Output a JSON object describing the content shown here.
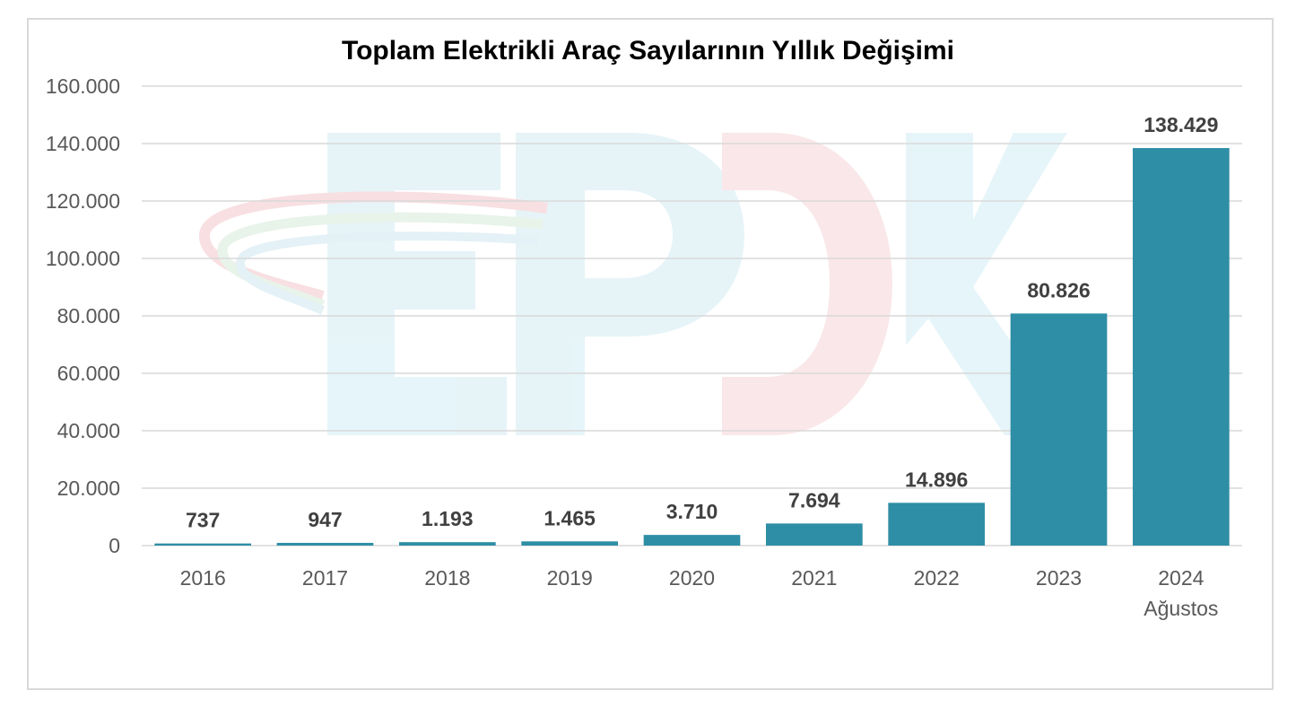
{
  "chart_data": {
    "type": "bar",
    "title": "Toplam Elektrikli Araç Sayılarının Yıllık Değişimi",
    "categories": [
      [
        "2016"
      ],
      [
        "2017"
      ],
      [
        "2018"
      ],
      [
        "2019"
      ],
      [
        "2020"
      ],
      [
        "2021"
      ],
      [
        "2022"
      ],
      [
        "2023"
      ],
      [
        "2024",
        "Ağustos"
      ]
    ],
    "values": [
      737,
      947,
      1193,
      1465,
      3710,
      7694,
      14896,
      80826,
      138429
    ],
    "value_labels": [
      "737",
      "947",
      "1.193",
      "1.465",
      "3.710",
      "7.694",
      "14.896",
      "80.826",
      "138.429"
    ],
    "ylim": [
      0,
      160000
    ],
    "yticks": [
      0,
      20000,
      40000,
      60000,
      80000,
      100000,
      120000,
      140000,
      160000
    ],
    "ytick_labels": [
      "0",
      "20.000",
      "40.000",
      "60.000",
      "80.000",
      "100.000",
      "120.000",
      "140.000",
      "160.000"
    ],
    "grid": true,
    "bar_color": "#2e8ea5",
    "watermark": "EPDK"
  }
}
